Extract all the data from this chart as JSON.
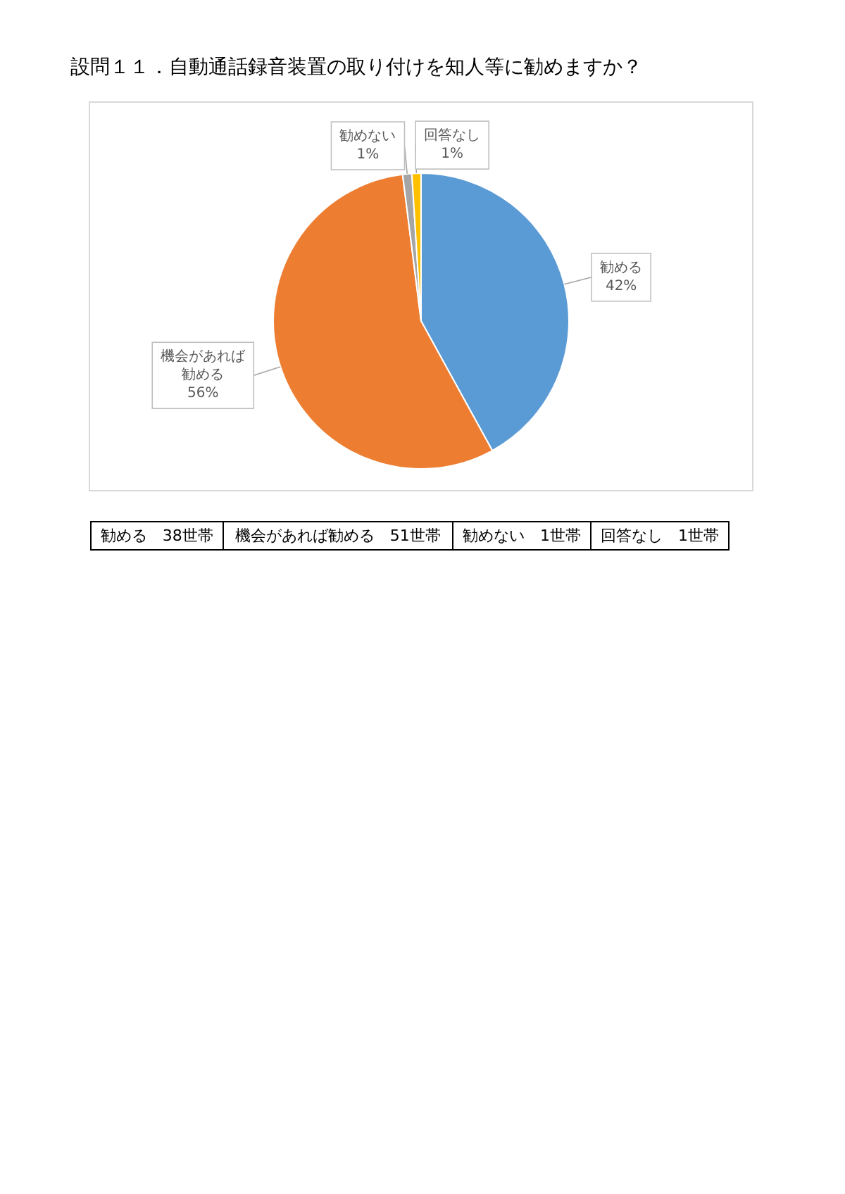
{
  "chart_data": {
    "type": "pie",
    "title": "設問１１．自動通話録音装置の取り付けを知人等に勧めますか？",
    "categories": [
      "勧める",
      "機会があれば勧める",
      "勧めない",
      "回答なし"
    ],
    "values": [
      42,
      56,
      1,
      1
    ],
    "colors": [
      "#5b9bd5",
      "#ed7d31",
      "#a5a5a5",
      "#ffc000"
    ],
    "value_labels": [
      "42%",
      "56%",
      "1%",
      "1%"
    ],
    "annotations": [
      "勧める　38世帯",
      "機会があれば勧める　51世帯",
      "勧めない　1世帯",
      "回答なし　1世帯"
    ]
  }
}
